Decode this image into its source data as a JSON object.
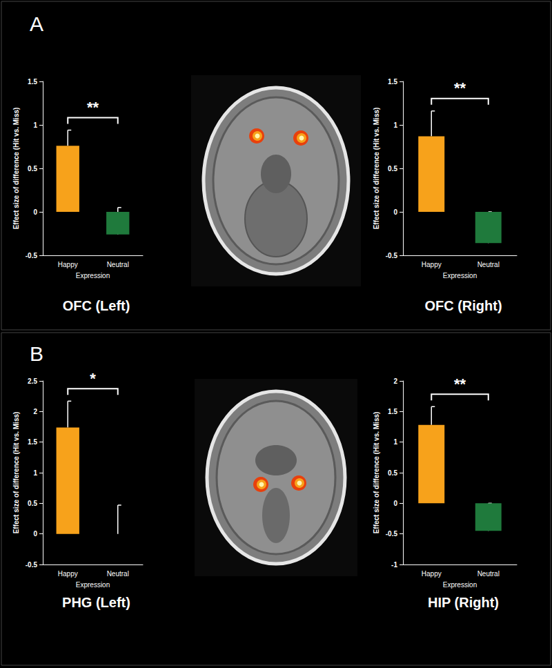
{
  "panel_labels": [
    "A",
    "B"
  ],
  "chart_data": [
    {
      "type": "bar",
      "title": "OFC (Left)",
      "x_label": "Expression",
      "y_label": "Effect size of difference (Hit vs. Miss)",
      "categories": [
        "Happy",
        "Neutral"
      ],
      "values": [
        0.76,
        -0.26
      ],
      "errors": [
        0.18,
        0.31
      ],
      "colors": [
        "#f7a21b",
        "#1f7a3c"
      ],
      "ylim": [
        -0.5,
        1.5
      ],
      "yticks": [
        -0.5,
        0,
        0.5,
        1,
        1.5
      ],
      "significance": "**",
      "grid": false
    },
    {
      "type": "bar",
      "title": "OFC (Right)",
      "x_label": "Expression",
      "y_label": "Effect size of difference (Hit vs. Miss)",
      "categories": [
        "Happy",
        "Neutral"
      ],
      "values": [
        0.87,
        -0.36
      ],
      "errors": [
        0.29,
        0.36
      ],
      "colors": [
        "#f7a21b",
        "#1f7a3c"
      ],
      "ylim": [
        -0.5,
        1.5
      ],
      "yticks": [
        -0.5,
        0,
        0.5,
        1,
        1.5
      ],
      "significance": "**",
      "grid": false
    },
    {
      "type": "bar",
      "title": "PHG (Left)",
      "x_label": "Expression",
      "y_label": "Effect size of difference (Hit vs. Miss)",
      "categories": [
        "Happy",
        "Neutral"
      ],
      "values": [
        1.74,
        0.0
      ],
      "errors": [
        0.43,
        0.47
      ],
      "colors": [
        "#f7a21b",
        "#1f7a3c"
      ],
      "ylim": [
        -0.5,
        2.5
      ],
      "yticks": [
        -0.5,
        0,
        0.5,
        1,
        1.5,
        2,
        2.5
      ],
      "significance": "*",
      "grid": false
    },
    {
      "type": "bar",
      "title": "HIP (Right)",
      "x_label": "Expression",
      "y_label": "Effect size of difference (Hit vs. Miss)",
      "categories": [
        "Happy",
        "Neutral"
      ],
      "values": [
        1.28,
        -0.45
      ],
      "errors": [
        0.3,
        0.45
      ],
      "colors": [
        "#f7a21b",
        "#1f7a3c"
      ],
      "ylim": [
        -1,
        2
      ],
      "yticks": [
        -1,
        -0.5,
        0,
        0.5,
        1,
        1.5,
        2
      ],
      "significance": "**",
      "grid": false
    }
  ]
}
